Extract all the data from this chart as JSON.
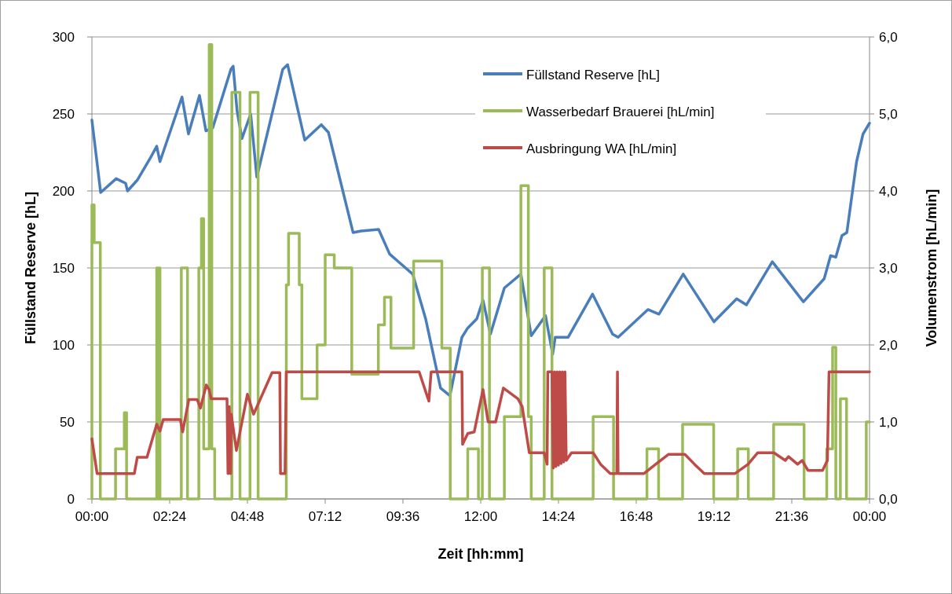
{
  "chart_data": {
    "type": "line",
    "xlabel": "Zeit [hh:mm]",
    "ylabel": "Füllstand Reserve [hL]",
    "y2label": "Volumenstrom [hL/min]",
    "xlim": [
      0,
      24
    ],
    "xticks": [
      {
        "value": 0,
        "label": "00:00"
      },
      {
        "value": 2.4,
        "label": "02:24"
      },
      {
        "value": 4.8,
        "label": "04:48"
      },
      {
        "value": 7.2,
        "label": "07:12"
      },
      {
        "value": 9.6,
        "label": "09:36"
      },
      {
        "value": 12,
        "label": "12:00"
      },
      {
        "value": 14.4,
        "label": "14:24"
      },
      {
        "value": 16.8,
        "label": "16:48"
      },
      {
        "value": 19.2,
        "label": "19:12"
      },
      {
        "value": 21.6,
        "label": "21:36"
      },
      {
        "value": 24,
        "label": "00:00"
      }
    ],
    "ylim": [
      0,
      300
    ],
    "yticks": [
      0,
      50,
      100,
      150,
      200,
      250,
      300
    ],
    "y2lim": [
      0,
      6
    ],
    "y2ticks": [
      {
        "value": 0,
        "label": "0,0"
      },
      {
        "value": 1,
        "label": "1,0"
      },
      {
        "value": 2,
        "label": "2,0"
      },
      {
        "value": 3,
        "label": "3,0"
      },
      {
        "value": 4,
        "label": "4,0"
      },
      {
        "value": 5,
        "label": "5,0"
      },
      {
        "value": 6,
        "label": "6,0"
      }
    ],
    "grid": "y",
    "legend": "top right",
    "marker": "none",
    "line_style": "solid",
    "series": [
      {
        "name": "Füllstand Reserve [hL]",
        "color": "#4a7ebb",
        "x": [
          0,
          0.27,
          0.75,
          1.04,
          1.1,
          1.4,
          1.82,
          2.0,
          2.1,
          2.78,
          2.98,
          3.32,
          3.52,
          3.73,
          4.29,
          4.36,
          4.48,
          4.63,
          4.9,
          5.09,
          5.89,
          6.04,
          6.57,
          7.08,
          7.3,
          8.06,
          8.31,
          8.85,
          9.19,
          9.9,
          10.3,
          10.76,
          11.05,
          11.42,
          11.6,
          11.88,
          12.07,
          12.3,
          12.73,
          13.24,
          13.56,
          14.0,
          14.22,
          14.3,
          14.7,
          15.45,
          16.07,
          16.24,
          17.16,
          17.5,
          18.25,
          19.2,
          19.9,
          20.2,
          21.0,
          21.96,
          22.6,
          22.8,
          22.96,
          23.15,
          23.3,
          23.6,
          23.8,
          24
        ],
        "values": [
          246,
          199,
          208,
          205,
          200,
          207,
          222,
          229,
          219,
          261,
          237,
          262,
          239,
          241,
          279,
          281,
          252,
          234,
          250,
          209,
          279,
          282,
          233,
          243,
          238,
          173,
          174,
          175,
          159,
          146,
          117,
          72,
          67,
          105,
          111,
          117,
          129,
          107,
          137,
          146,
          106,
          119,
          94,
          105,
          105,
          133,
          107,
          105,
          123,
          120,
          146,
          115,
          130,
          126,
          154,
          128,
          143,
          158,
          157,
          171,
          173,
          219,
          237,
          244
        ]
      },
      {
        "name": "Wasserbedarf Brauerei [hL/min]",
        "color": "#9bbb59",
        "axis": "y2",
        "x": [
          0,
          0,
          0.07,
          0.07,
          0.26,
          0.26,
          0.73,
          0.73,
          1.0,
          1.0,
          1.07,
          1.07,
          2.0,
          2.0,
          2.04,
          2.04,
          2.07,
          2.07,
          2.1,
          2.1,
          2.76,
          2.76,
          2.95,
          2.95,
          3.3,
          3.3,
          3.38,
          3.38,
          3.45,
          3.45,
          3.62,
          3.62,
          3.7,
          3.7,
          3.79,
          3.79,
          4.32,
          4.32,
          4.57,
          4.57,
          4.88,
          4.88,
          5.13,
          5.13,
          6.0,
          6.0,
          6.07,
          6.07,
          6.4,
          6.4,
          6.48,
          6.48,
          6.95,
          6.95,
          7.2,
          7.2,
          7.48,
          7.48,
          8.02,
          8.02,
          8.84,
          8.84,
          9.03,
          9.03,
          9.23,
          9.23,
          9.93,
          9.93,
          10.8,
          10.8,
          11.06,
          11.06,
          11.6,
          11.6,
          11.93,
          11.93,
          12.05,
          12.05,
          12.27,
          12.27,
          12.73,
          12.73,
          13.24,
          13.24,
          13.47,
          13.47,
          13.56,
          13.56,
          13.96,
          13.96,
          14.2,
          14.2,
          15.47,
          15.47,
          16.1,
          16.1,
          17.13,
          17.13,
          17.49,
          17.49,
          18.23,
          18.23,
          19.19,
          19.19,
          19.93,
          19.93,
          20.26,
          20.26,
          21.04,
          21.04,
          21.98,
          21.98,
          22.68,
          22.68,
          22.86,
          22.86,
          22.96,
          22.96,
          23.1,
          23.1,
          23.29,
          23.29,
          23.9,
          23.9,
          24
        ],
        "values": [
          0,
          3.82,
          3.82,
          3.33,
          3.33,
          0,
          0,
          0.65,
          0.65,
          1.12,
          1.12,
          0,
          0,
          3.0,
          3.0,
          0,
          0,
          3.0,
          3.0,
          0,
          0,
          3.0,
          3.0,
          0,
          0,
          3.0,
          3.0,
          3.64,
          3.64,
          0.65,
          0.65,
          5.9,
          5.9,
          0.65,
          0.65,
          0,
          0,
          5.28,
          5.28,
          0,
          0,
          5.28,
          5.28,
          0,
          0,
          2.78,
          2.78,
          3.45,
          3.45,
          2.78,
          2.78,
          1.3,
          1.3,
          2.0,
          2.0,
          3.17,
          3.17,
          3.0,
          3.0,
          1.62,
          1.62,
          2.26,
          2.26,
          2.62,
          2.62,
          1.96,
          1.96,
          3.09,
          3.09,
          1.96,
          1.96,
          0,
          0,
          0.65,
          0.65,
          0,
          0,
          3.0,
          3.0,
          0,
          0,
          1.07,
          1.07,
          4.07,
          4.07,
          1.07,
          1.07,
          0,
          0,
          3.0,
          3.0,
          0,
          0,
          1.07,
          1.07,
          0,
          0,
          0.65,
          0.65,
          0,
          0,
          0.97,
          0.97,
          0,
          0,
          0.65,
          0.65,
          0,
          0,
          0.97,
          0.97,
          0,
          0,
          0.65,
          0.65,
          1.97,
          1.97,
          0,
          0,
          1.3,
          1.3,
          0,
          0,
          1.0,
          1.0
        ]
      },
      {
        "name": "Ausbringung WA [hL/min]",
        "color": "#be4b48",
        "axis": "y2",
        "x": [
          0,
          0.16,
          1.31,
          1.4,
          1.7,
          2.0,
          2.1,
          2.2,
          2.73,
          2.8,
          2.99,
          3.25,
          3.35,
          3.53,
          3.62,
          3.68,
          4.17,
          4.2,
          4.24,
          4.28,
          4.3,
          4.46,
          4.8,
          4.99,
          5.56,
          5.8,
          5.82,
          5.96,
          6.0,
          10.1,
          10.4,
          10.47,
          11.42,
          11.44,
          11.6,
          11.8,
          12.07,
          12.23,
          12.46,
          12.7,
          13.15,
          13.28,
          13.5,
          13.96,
          14.05,
          14.07,
          14.2,
          14.24,
          14.28,
          14.32,
          14.36,
          14.4,
          14.44,
          14.48,
          14.52,
          14.56,
          14.6,
          14.64,
          14.8,
          15.47,
          15.7,
          16.0,
          16.2,
          16.22,
          16.24,
          17.04,
          17.4,
          17.8,
          18.3,
          18.6,
          18.9,
          19.85,
          20.25,
          20.55,
          21.05,
          21.4,
          21.5,
          21.78,
          21.92,
          22.1,
          22.55,
          22.7,
          22.75,
          24
        ],
        "values": [
          0.78,
          0.33,
          0.33,
          0.54,
          0.54,
          0.97,
          0.88,
          1.03,
          1.03,
          0.87,
          1.29,
          1.29,
          1.18,
          1.48,
          1.42,
          1.3,
          1.3,
          0.33,
          1.2,
          0.33,
          1.1,
          0.63,
          1.36,
          1.1,
          1.64,
          1.64,
          0.33,
          0.33,
          1.65,
          1.65,
          1.27,
          1.65,
          1.65,
          0.71,
          0.85,
          0.87,
          1.42,
          1.0,
          1.0,
          1.44,
          1.3,
          1.2,
          0.6,
          0.6,
          0.45,
          1.65,
          1.65,
          0.4,
          1.65,
          0.42,
          1.65,
          0.44,
          1.65,
          0.46,
          1.65,
          0.48,
          1.65,
          0.5,
          0.6,
          0.6,
          0.45,
          0.33,
          0.33,
          1.65,
          0.33,
          0.33,
          0.45,
          0.58,
          0.58,
          0.45,
          0.33,
          0.33,
          0.45,
          0.6,
          0.6,
          0.5,
          0.55,
          0.45,
          0.5,
          0.37,
          0.37,
          0.5,
          1.65,
          1.65
        ]
      }
    ]
  }
}
